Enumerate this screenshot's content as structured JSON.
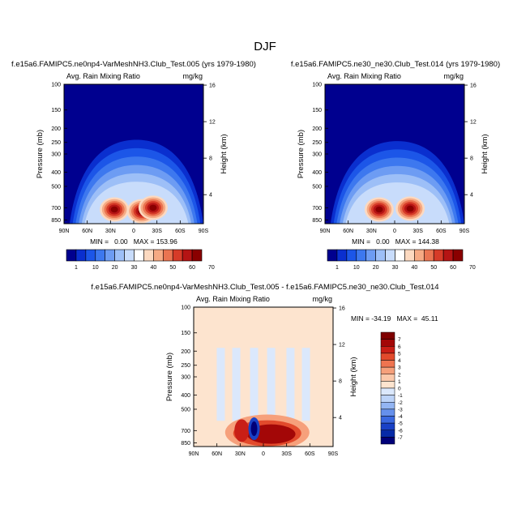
{
  "figure": {
    "title": "DJF"
  },
  "chart_data": [
    {
      "type": "heatmap",
      "title": "f.e15a6.FAMIPC5.ne0np4-VarMeshNH3.Club_Test.005 (yrs 1979-1980)",
      "left_label": "Avg. Rain Mixing Ratio",
      "right_label": "mg/kg",
      "xlabel": "",
      "ylabel": "Pressure (mb)",
      "ylabel_right": "Height (km)",
      "x_ticks": [
        "90N",
        "60N",
        "30N",
        "0",
        "30S",
        "60S",
        "90S"
      ],
      "y_ticks": [
        "100",
        "150",
        "200",
        "250",
        "300",
        "400",
        "500",
        "700",
        "850"
      ],
      "y_ticks_right": [
        "16",
        "12",
        "8",
        "4"
      ],
      "stats": "MIN =   0.00   MAX = 153.96",
      "min": 0.0,
      "max": 153.96,
      "colorbar_levels": [
        "1",
        "10",
        "20",
        "30",
        "40",
        "50",
        "60",
        "70"
      ],
      "blobs": [
        {
          "lat": 25,
          "p": 720,
          "value": 90
        },
        {
          "lat": -10,
          "p": 740,
          "value": 150
        },
        {
          "lat": -25,
          "p": 700,
          "value": 120
        }
      ]
    },
    {
      "type": "heatmap",
      "title": "f.e15a6.FAMIPC5.ne30_ne30.Club_Test.014 (yrs 1979-1980)",
      "left_label": "Avg. Rain Mixing Ratio",
      "right_label": "mg/kg",
      "xlabel": "",
      "ylabel": "Pressure (mb)",
      "ylabel_right": "Height (km)",
      "x_ticks": [
        "90N",
        "60N",
        "30N",
        "0",
        "30S",
        "60S",
        "90S"
      ],
      "y_ticks": [
        "100",
        "150",
        "200",
        "250",
        "300",
        "400",
        "500",
        "700",
        "850"
      ],
      "y_ticks_right": [
        "16",
        "12",
        "8",
        "4"
      ],
      "stats": "MIN =   0.00   MAX = 144.38",
      "min": 0.0,
      "max": 144.38,
      "colorbar_levels": [
        "1",
        "10",
        "20",
        "30",
        "40",
        "50",
        "60",
        "70"
      ],
      "blobs": [
        {
          "lat": 20,
          "p": 720,
          "value": 80
        },
        {
          "lat": -20,
          "p": 710,
          "value": 144
        }
      ]
    },
    {
      "type": "heatmap",
      "title": "f.e15a6.FAMIPC5.ne0np4-VarMeshNH3.Club_Test.005 - f.e15a6.FAMIPC5.ne30_ne30.Club_Test.014",
      "left_label": "Avg. Rain Mixing Ratio",
      "right_label": "mg/kg",
      "xlabel": "",
      "ylabel": "Pressure (mb)",
      "ylabel_right": "Height (km)",
      "x_ticks": [
        "90N",
        "60N",
        "30N",
        "0",
        "30S",
        "60S",
        "90S"
      ],
      "y_ticks": [
        "100",
        "150",
        "200",
        "250",
        "300",
        "400",
        "500",
        "700",
        "850"
      ],
      "y_ticks_right": [
        "16",
        "12",
        "8",
        "4"
      ],
      "stats": "MIN = -34.19   MAX =  45.11",
      "min": -34.19,
      "max": 45.11,
      "colorbar_levels": [
        "7",
        "6",
        "5",
        "4",
        "3",
        "2",
        "1",
        "0",
        "-1",
        "-2",
        "-3",
        "-4",
        "-5",
        "-6",
        "-7"
      ]
    }
  ],
  "colors": {
    "rain_scale": [
      "#00008f",
      "#0a2fcf",
      "#1c56e8",
      "#3d78ef",
      "#6d9cf3",
      "#9dbff7",
      "#c8dcfb",
      "#ffffff",
      "#fcd9c0",
      "#f6aa84",
      "#ea7451",
      "#d63b28",
      "#b51414",
      "#8a0000"
    ],
    "diff_pos": [
      "#fde4cf",
      "#fbc8aa",
      "#f6a07b",
      "#ef7450",
      "#e24a2c",
      "#c91e16",
      "#a30707",
      "#7f0000"
    ],
    "diff_neg": [
      "#dbe8fc",
      "#bcd3f8",
      "#93b5f3",
      "#6690ec",
      "#3a68e0",
      "#1941c6",
      "#062aa7",
      "#000078"
    ]
  }
}
